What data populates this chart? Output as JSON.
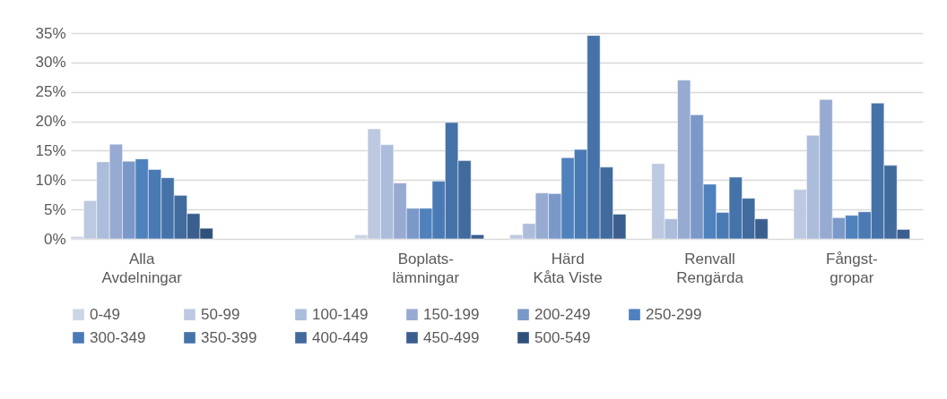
{
  "chart_data": {
    "type": "bar",
    "categories": [
      "Alla\nAvdelningar",
      null,
      "Boplats-\nlämningar",
      "Härd\nKåta Viste",
      "Renvall\nRengärda",
      "Fångst-\ngropar"
    ],
    "ylim": [
      0,
      35
    ],
    "yticks": [
      {
        "value": 0,
        "label": "0%"
      },
      {
        "value": 5,
        "label": "5%"
      },
      {
        "value": 10,
        "label": "10%"
      },
      {
        "value": 15,
        "label": "15%"
      },
      {
        "value": 20,
        "label": "20%"
      },
      {
        "value": 25,
        "label": "25%"
      },
      {
        "value": 30,
        "label": "30%"
      },
      {
        "value": 35,
        "label": "35%"
      }
    ],
    "grid": "y",
    "legend": "bottom",
    "series": [
      {
        "name": "0-49",
        "color": "#ccd5e6",
        "values": [
          0.4,
          null,
          0.7,
          null,
          null,
          null
        ]
      },
      {
        "name": "50-99",
        "color": "#bdc9e0",
        "values": [
          6.5,
          null,
          18.7,
          0.7,
          12.8,
          8.4
        ]
      },
      {
        "name": "100-149",
        "color": "#acbcdb",
        "values": [
          13.1,
          null,
          16.0,
          2.6,
          3.4,
          17.6
        ]
      },
      {
        "name": "150-199",
        "color": "#97aad1",
        "values": [
          16.1,
          null,
          9.5,
          7.8,
          27.0,
          23.7
        ]
      },
      {
        "name": "200-249",
        "color": "#7a99c8",
        "values": [
          13.2,
          null,
          5.2,
          7.7,
          21.1,
          3.6
        ]
      },
      {
        "name": "250-299",
        "color": "#4f81bd",
        "values": [
          13.6,
          null,
          5.2,
          13.8,
          9.3,
          4.0
        ]
      },
      {
        "name": "300-349",
        "color": "#4a7ab4",
        "values": [
          11.8,
          null,
          9.8,
          15.2,
          4.5,
          4.6
        ]
      },
      {
        "name": "350-399",
        "color": "#4573a9",
        "values": [
          10.4,
          null,
          19.8,
          34.6,
          10.5,
          23.1
        ]
      },
      {
        "name": "400-449",
        "color": "#416a9d",
        "values": [
          7.4,
          null,
          13.3,
          12.2,
          6.9,
          12.5
        ]
      },
      {
        "name": "450-499",
        "color": "#3a5f8e",
        "values": [
          4.3,
          null,
          0.7,
          4.2,
          3.4,
          1.6
        ]
      },
      {
        "name": "500-549",
        "color": "#30507c",
        "values": [
          1.8,
          null,
          null,
          null,
          null,
          null
        ]
      }
    ]
  }
}
